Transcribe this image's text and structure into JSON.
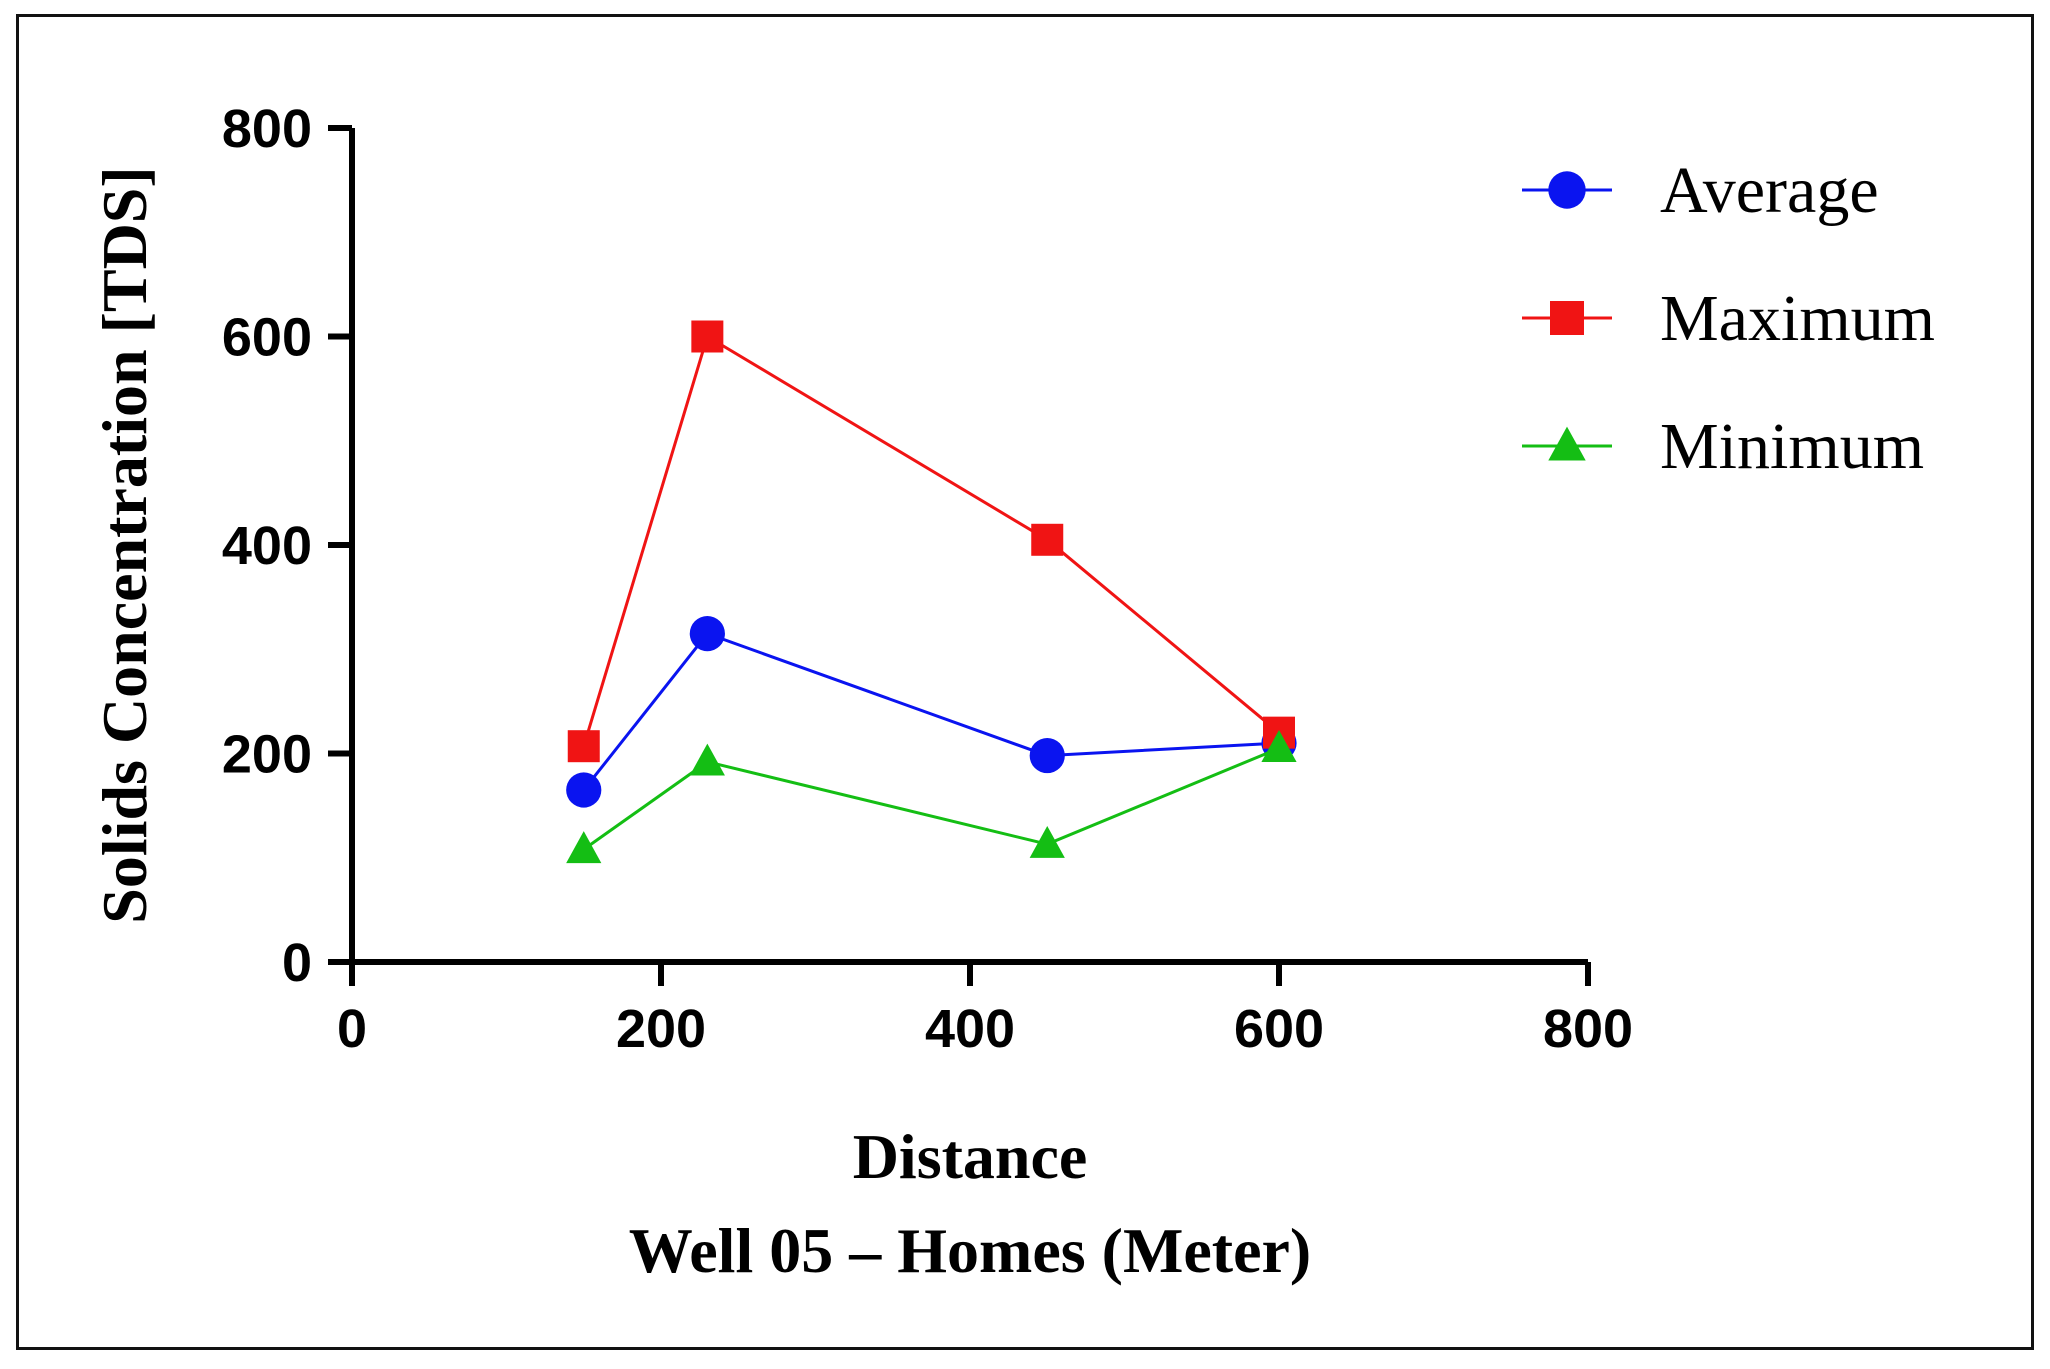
{
  "chart_data": {
    "type": "line",
    "title": "",
    "xlabel": "Distance",
    "xlabel_sub": "Well 05 – Homes (Meter)",
    "ylabel": "Solids Concentration [TDS]",
    "xlim": [
      0,
      800
    ],
    "ylim": [
      0,
      800
    ],
    "xticks": [
      0,
      200,
      400,
      600,
      800
    ],
    "yticks": [
      0,
      200,
      400,
      600,
      800
    ],
    "grid": false,
    "legend_position": "top-right",
    "series": [
      {
        "name": "Average",
        "color": "#0a14f0",
        "marker": "circle",
        "x": [
          150,
          230,
          450,
          600
        ],
        "values": [
          165,
          315,
          198,
          210
        ]
      },
      {
        "name": "Maximum",
        "color": "#f01414",
        "marker": "square",
        "x": [
          150,
          230,
          450,
          600
        ],
        "values": [
          207,
          600,
          405,
          220
        ]
      },
      {
        "name": "Minimum",
        "color": "#14be14",
        "marker": "triangle",
        "x": [
          150,
          230,
          450,
          600
        ],
        "values": [
          108,
          192,
          113,
          205
        ]
      }
    ]
  }
}
